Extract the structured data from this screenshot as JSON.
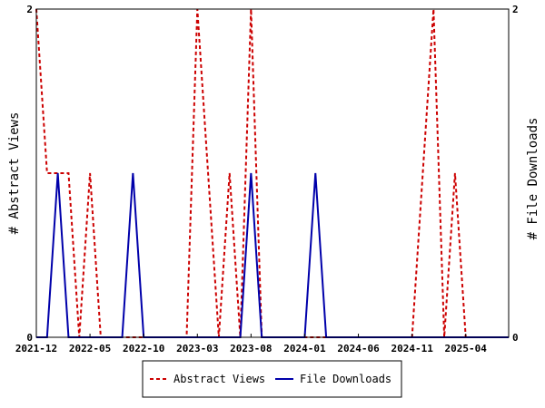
{
  "chart_data": {
    "type": "line",
    "xlabel": "",
    "ylabel_left": "# Abstract Views",
    "ylabel_right": "# File Downloads",
    "x_tick_labels": [
      "2021-12",
      "2022-05",
      "2022-10",
      "2023-03",
      "2023-08",
      "2024-01",
      "2024-06",
      "2024-11",
      "2025-04"
    ],
    "ylim_left": [
      0,
      2
    ],
    "ylim_right": [
      0,
      2
    ],
    "y_tick_labels_left": [
      "0",
      "2"
    ],
    "y_tick_labels_right": [
      "0",
      "2"
    ],
    "grid": false,
    "legend_position": "bottom-center",
    "x": [
      "2021-12",
      "2022-01",
      "2022-02",
      "2022-03",
      "2022-04",
      "2022-05",
      "2022-06",
      "2022-07",
      "2022-08",
      "2022-09",
      "2022-10",
      "2022-11",
      "2022-12",
      "2023-01",
      "2023-02",
      "2023-03",
      "2023-04",
      "2023-05",
      "2023-06",
      "2023-07",
      "2023-08",
      "2023-09",
      "2023-10",
      "2023-11",
      "2023-12",
      "2024-01",
      "2024-02",
      "2024-03",
      "2024-04",
      "2024-05",
      "2024-06",
      "2024-07",
      "2024-08",
      "2024-09",
      "2024-10",
      "2024-11",
      "2024-12",
      "2025-01",
      "2025-02",
      "2025-03",
      "2025-04",
      "2025-05",
      "2025-06",
      "2025-07",
      "2025-08"
    ],
    "series": [
      {
        "name": "Abstract Views",
        "color": "#cc0000",
        "style": "dashed",
        "axis": "left",
        "values": [
          2,
          1,
          1,
          1,
          0,
          1,
          0,
          0,
          0,
          0,
          0,
          0,
          0,
          0,
          0,
          2,
          1,
          0,
          1,
          0,
          2,
          0,
          0,
          0,
          0,
          0,
          0,
          0,
          0,
          0,
          0,
          0,
          0,
          0,
          0,
          0,
          1,
          2,
          0,
          1,
          0,
          0,
          0,
          0,
          0
        ]
      },
      {
        "name": "File Downloads",
        "color": "#0000aa",
        "style": "solid",
        "axis": "right",
        "values": [
          0,
          0,
          1,
          0,
          0,
          0,
          0,
          0,
          0,
          1,
          0,
          0,
          0,
          0,
          0,
          0,
          0,
          0,
          0,
          0,
          1,
          0,
          0,
          0,
          0,
          0,
          1,
          0,
          0,
          0,
          0,
          0,
          0,
          0,
          0,
          0,
          0,
          0,
          0,
          0,
          0,
          0,
          0,
          0,
          0
        ]
      }
    ]
  }
}
